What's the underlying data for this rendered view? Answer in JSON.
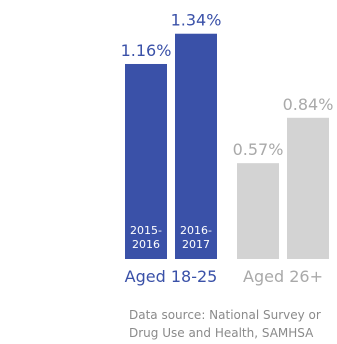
{
  "chart_data": {
    "type": "bar",
    "groups": [
      {
        "name": "Aged 18-25",
        "color": "#3a51a8",
        "label_color": "#3a51a8",
        "bars": [
          {
            "period": [
              "2015-",
              "2016"
            ],
            "value": 1.16,
            "value_label": "1.16%"
          },
          {
            "period": [
              "2016-",
              "2017"
            ],
            "value": 1.34,
            "value_label": "1.34%"
          }
        ]
      },
      {
        "name": "Aged 26+",
        "color": "#d3d3d3",
        "label_color": "#a9a9a9",
        "bars": [
          {
            "value": 0.57,
            "value_label": "0.57%"
          },
          {
            "value": 0.84,
            "value_label": "0.84%"
          }
        ]
      }
    ],
    "unit": "%",
    "ylim": [
      0,
      1.38
    ]
  },
  "source": {
    "line1": "Data source:  National Survey or",
    "line2": "Drug Use and Health, SAMHSA"
  }
}
